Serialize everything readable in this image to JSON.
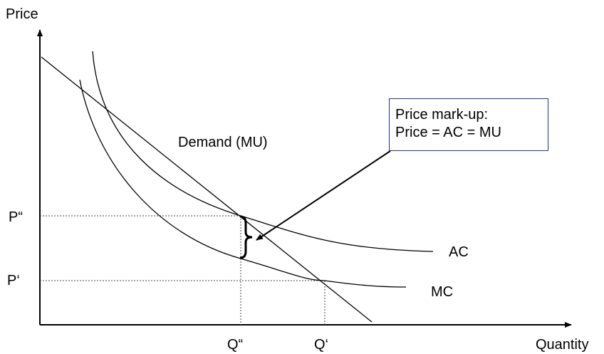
{
  "axes": {
    "y_label": "Price",
    "x_label": "Quantity"
  },
  "curves": {
    "demand_label": "Demand (MU)",
    "ac_label": "AC",
    "mc_label": "MC"
  },
  "levels": {
    "p_double_label": "P“",
    "p_single_label": "P‘",
    "q_double_label": "Q“",
    "q_single_label": "Q‘"
  },
  "callout": {
    "line1": "Price mark-up:",
    "line2": "Price = AC = MU"
  },
  "colors": {
    "curve": "#000000",
    "guide": "#444444",
    "callout_border": "#1f2f8f"
  }
}
